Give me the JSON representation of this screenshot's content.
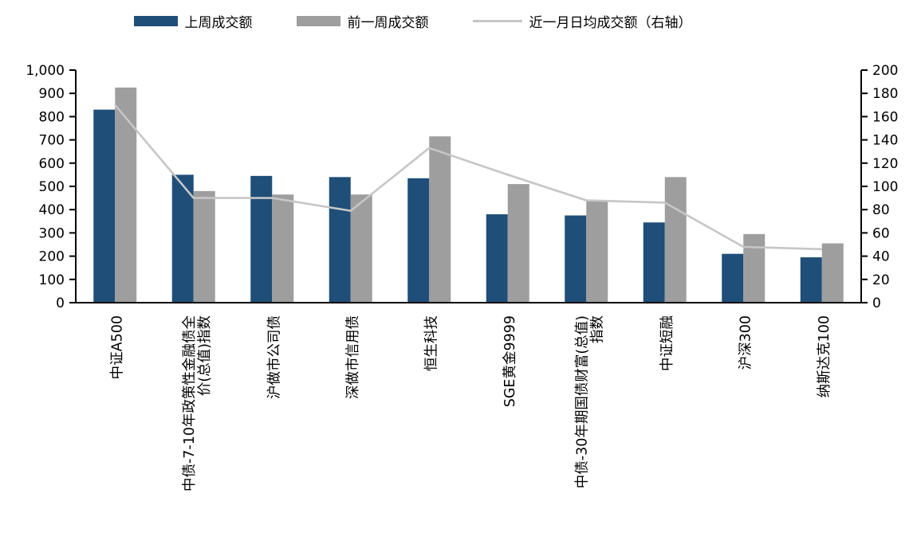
{
  "chart_data": {
    "type": "bar",
    "subtype": "grouped-bars-with-line-overlay",
    "title": "",
    "grid": false,
    "legend_position": "top",
    "background": "#ffffff",
    "axis_color": "#000000",
    "categories": [
      "中证A500",
      "中债-7-10年政策性金融债全\n价(总值)指数",
      "沪做市公司债",
      "深做市信用债",
      "恒生科技",
      "SGE黄金9999",
      "中债-30年期国债财富(总值)\n指数",
      "中证短融",
      "沪深300",
      "纳斯达克100"
    ],
    "series": [
      {
        "name": "上周成交额",
        "type": "bar",
        "axis": "left",
        "color": "#1f4e79",
        "values": [
          830,
          550,
          545,
          540,
          535,
          380,
          375,
          345,
          210,
          195
        ]
      },
      {
        "name": "前一周成交额",
        "type": "bar",
        "axis": "left",
        "color": "#9e9e9e",
        "values": [
          925,
          480,
          465,
          465,
          715,
          510,
          440,
          540,
          295,
          255
        ]
      },
      {
        "name": "近一月日均成交额（右轴）",
        "type": "line",
        "axis": "right",
        "color": "#c6c6c6",
        "values": [
          170,
          90,
          90,
          79,
          133,
          110,
          88,
          86,
          48,
          46
        ]
      }
    ],
    "left_axis": {
      "min": 0,
      "max": 1000,
      "step": 100,
      "tick_labels": [
        "0",
        "100",
        "200",
        "300",
        "400",
        "500",
        "600",
        "700",
        "800",
        "900",
        "1,000"
      ]
    },
    "right_axis": {
      "min": 0,
      "max": 200,
      "step": 20,
      "tick_labels": [
        "0",
        "20",
        "40",
        "60",
        "80",
        "100",
        "120",
        "140",
        "160",
        "180",
        "200"
      ]
    }
  }
}
